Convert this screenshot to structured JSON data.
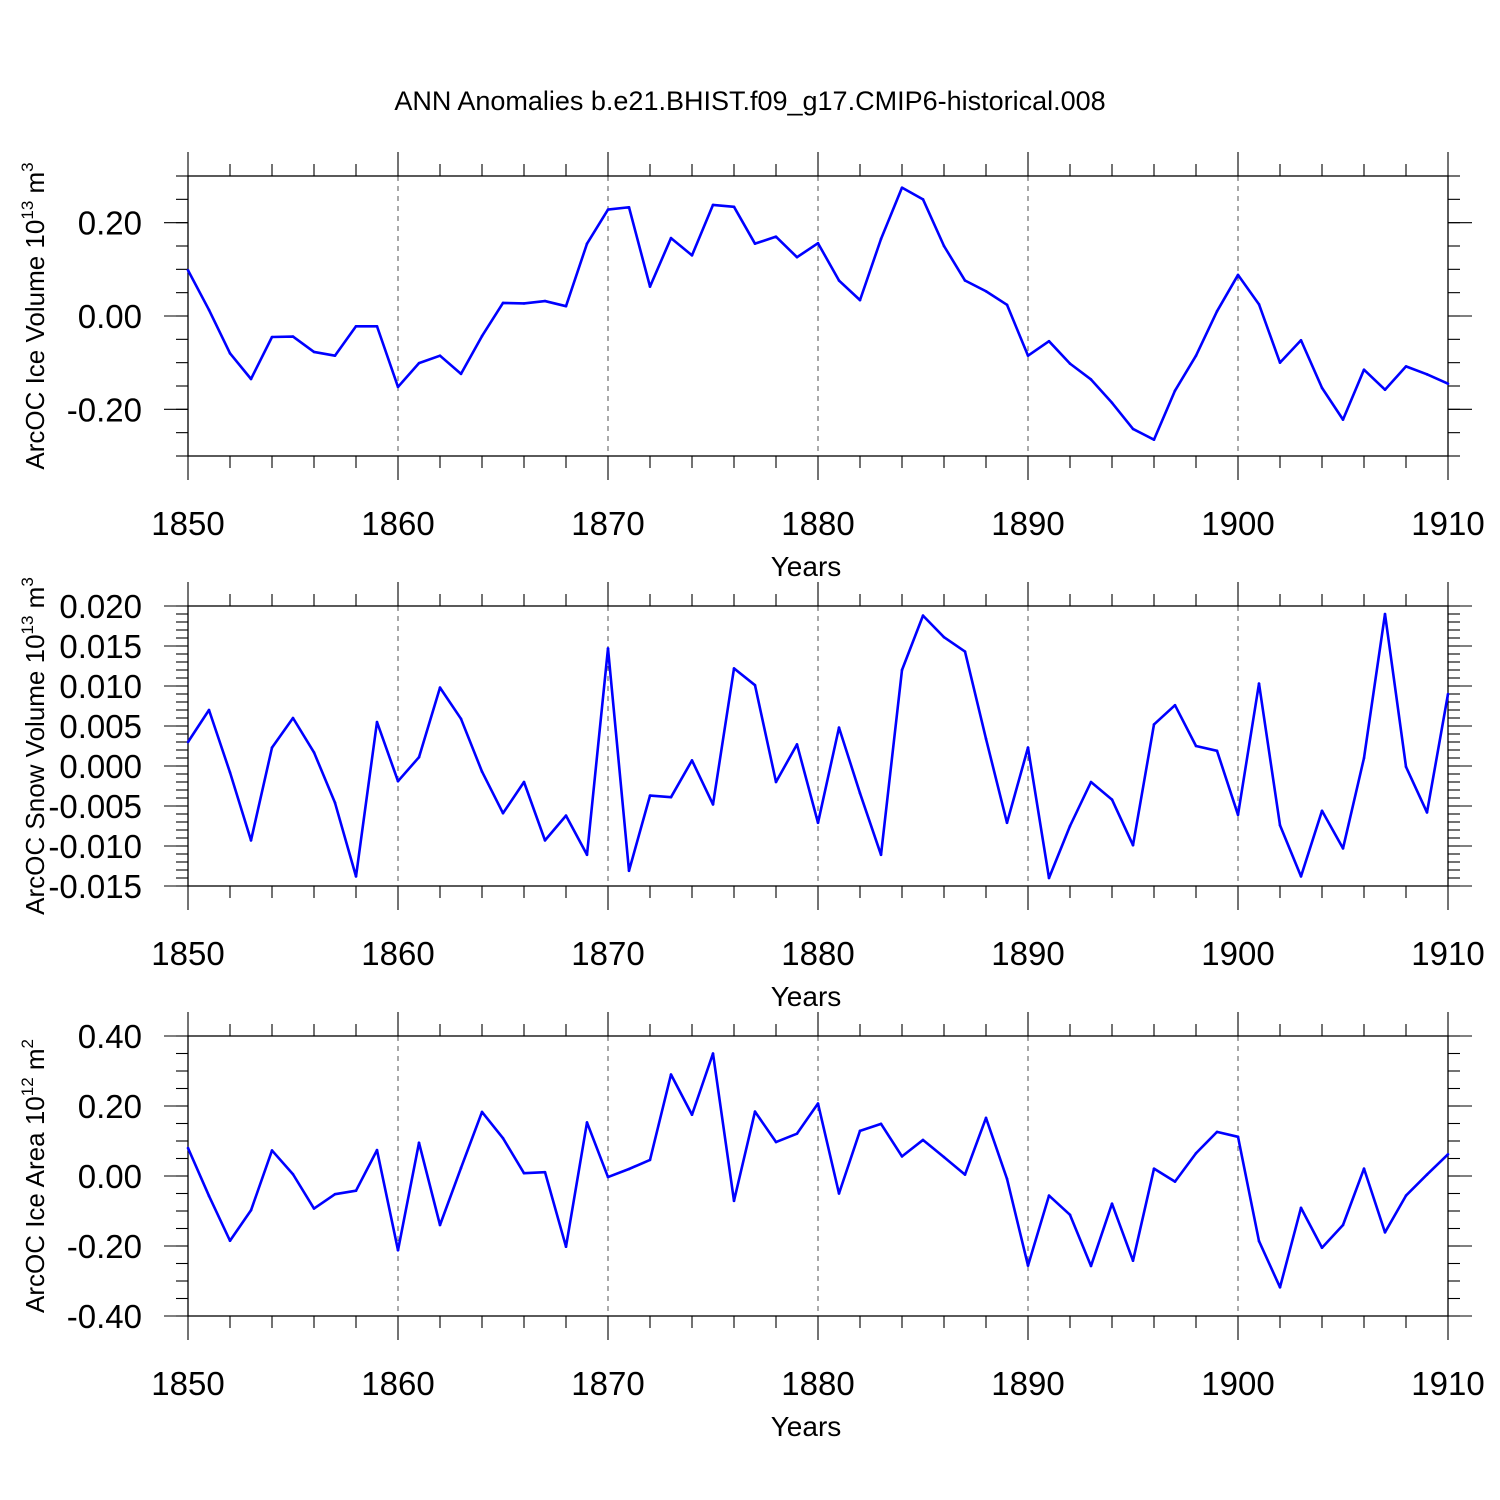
{
  "title": "ANN Anomalies b.e21.BHIST.f09_g17.CMIP6-historical.008",
  "line_color": "#0000ff",
  "chart_data": [
    {
      "type": "line",
      "ylabel": "ArcOC Ice Volume 10",
      "ylabel_exp": "13",
      "ylabel_unit": " m",
      "ylabel_unit_exp": "3",
      "xlabel": "Years",
      "xlim": [
        1850,
        1910
      ],
      "ylim": [
        -0.3,
        0.3
      ],
      "x_ticks": [
        1850,
        1860,
        1870,
        1880,
        1890,
        1900,
        1910
      ],
      "x_tick_labels": [
        "1850",
        "1860",
        "1870",
        "1880",
        "1890",
        "1900",
        "1910"
      ],
      "y_ticks": [
        -0.2,
        0.0,
        0.2
      ],
      "y_tick_labels": [
        "-0.20",
        "0.00",
        "0.20"
      ],
      "y_minor_step": 0.05,
      "grid": "vertical dashed at decades",
      "series": [
        {
          "name": "ArcOC Ice Volume",
          "x_start": 1850,
          "values": [
            0.098,
            0.013,
            -0.08,
            -0.135,
            -0.045,
            -0.044,
            -0.077,
            -0.085,
            -0.022,
            -0.022,
            -0.152,
            -0.101,
            -0.085,
            -0.124,
            -0.043,
            0.028,
            0.027,
            0.032,
            0.021,
            0.155,
            0.228,
            0.233,
            0.063,
            0.167,
            0.13,
            0.238,
            0.234,
            0.155,
            0.17,
            0.126,
            0.156,
            0.076,
            0.034,
            0.165,
            0.275,
            0.25,
            0.15,
            0.076,
            0.053,
            0.024,
            -0.085,
            -0.054,
            -0.102,
            -0.136,
            -0.186,
            -0.242,
            -0.265,
            -0.16,
            -0.085,
            0.01,
            0.088,
            0.025,
            -0.1,
            -0.052,
            -0.154,
            -0.222,
            -0.115,
            -0.158,
            -0.108,
            -0.125,
            -0.145
          ]
        }
      ]
    },
    {
      "type": "line",
      "ylabel": "ArcOC Snow Volume 10",
      "ylabel_exp": "13",
      "ylabel_unit": " m",
      "ylabel_unit_exp": "3",
      "xlabel": "Years",
      "xlim": [
        1850,
        1910
      ],
      "ylim": [
        -0.015,
        0.02
      ],
      "x_ticks": [
        1850,
        1860,
        1870,
        1880,
        1890,
        1900,
        1910
      ],
      "x_tick_labels": [
        "1850",
        "1860",
        "1870",
        "1880",
        "1890",
        "1900",
        "1910"
      ],
      "y_ticks": [
        -0.015,
        -0.01,
        -0.005,
        0.0,
        0.005,
        0.01,
        0.015,
        0.02
      ],
      "y_tick_labels": [
        "-0.015",
        "-0.010",
        "-0.005",
        "0.000",
        "0.005",
        "0.010",
        "0.015",
        "0.020"
      ],
      "y_minor_step": 0.001,
      "grid": "vertical dashed at decades",
      "series": [
        {
          "name": "ArcOC Snow Volume",
          "x_start": 1850,
          "values": [
            0.003,
            0.007,
            -0.0008,
            -0.0093,
            0.0023,
            0.006,
            0.0017,
            -0.0046,
            -0.0138,
            0.0055,
            -0.0019,
            0.0011,
            0.0098,
            0.0059,
            -0.0007,
            -0.0059,
            -0.002,
            -0.0093,
            -0.0062,
            -0.0111,
            0.0147,
            -0.0131,
            -0.0037,
            -0.0039,
            0.0007,
            -0.0048,
            0.0122,
            0.0101,
            -0.002,
            0.0027,
            -0.0071,
            0.0048,
            -0.0034,
            -0.0111,
            0.012,
            0.0188,
            0.0161,
            0.0143,
            0.0034,
            -0.0071,
            0.0023,
            -0.014,
            -0.0075,
            -0.002,
            -0.0042,
            -0.0099,
            0.0052,
            0.0076,
            0.0025,
            0.0019,
            -0.0061,
            0.0103,
            -0.0074,
            -0.0138,
            -0.0056,
            -0.0103,
            0.001,
            0.019,
            -0.0001,
            -0.0058,
            0.009
          ]
        }
      ]
    },
    {
      "type": "line",
      "ylabel": "ArcOC Ice Area 10",
      "ylabel_exp": "12",
      "ylabel_unit": " m",
      "ylabel_unit_exp": "2",
      "xlabel": "Years",
      "xlim": [
        1850,
        1910
      ],
      "ylim": [
        -0.4,
        0.4
      ],
      "x_ticks": [
        1850,
        1860,
        1870,
        1880,
        1890,
        1900,
        1910
      ],
      "x_tick_labels": [
        "1850",
        "1860",
        "1870",
        "1880",
        "1890",
        "1900",
        "1910"
      ],
      "y_ticks": [
        -0.4,
        -0.2,
        0.0,
        0.2,
        0.4
      ],
      "y_tick_labels": [
        "-0.40",
        "-0.20",
        "0.00",
        "0.20",
        "0.40"
      ],
      "y_minor_step": 0.05,
      "grid": "vertical dashed at decades",
      "series": [
        {
          "name": "ArcOC Ice Area",
          "x_start": 1850,
          "values": [
            0.08,
            -0.057,
            -0.185,
            -0.098,
            0.073,
            0.005,
            -0.093,
            -0.052,
            -0.042,
            0.074,
            -0.212,
            0.095,
            -0.14,
            0.023,
            0.183,
            0.108,
            0.008,
            0.011,
            -0.202,
            0.153,
            -0.003,
            0.02,
            0.046,
            0.29,
            0.175,
            0.35,
            -0.071,
            0.184,
            0.097,
            0.121,
            0.207,
            -0.05,
            0.129,
            0.149,
            0.056,
            0.103,
            0.054,
            0.004,
            0.166,
            -0.008,
            -0.256,
            -0.056,
            -0.111,
            -0.257,
            -0.079,
            -0.242,
            0.021,
            -0.016,
            0.065,
            0.126,
            0.112,
            -0.186,
            -0.318,
            -0.091,
            -0.205,
            -0.14,
            0.021,
            -0.161,
            -0.056,
            0.004,
            0.062
          ]
        }
      ]
    }
  ]
}
